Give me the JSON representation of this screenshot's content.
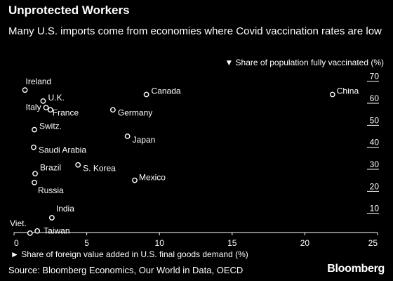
{
  "header": {
    "title": "Unprotected Workers",
    "subtitle": "Many U.S. imports come from economies where Covid vaccination rates are low"
  },
  "footer": {
    "source": "Source: Bloomberg Economics, Our World in Data, OECD",
    "brand": "Bloomberg"
  },
  "chart_data": {
    "type": "scatter",
    "title": "",
    "xlabel": "► Share of foreign value added in U.S. final goods demand (%)",
    "ylabel": "▼ Share of population fully vaccinated (%)",
    "xlim": [
      0,
      25
    ],
    "ylim": [
      0,
      75
    ],
    "xticks": [
      0,
      5,
      10,
      15,
      20,
      25
    ],
    "yticks": [
      10,
      20,
      30,
      40,
      50,
      60,
      70
    ],
    "grid": false,
    "points": [
      {
        "label": "Ireland",
        "x": 0.75,
        "y": 66
      },
      {
        "label": "Canada",
        "x": 9.1,
        "y": 64
      },
      {
        "label": "China",
        "x": 21.9,
        "y": 64
      },
      {
        "label": "U.K.",
        "x": 2.0,
        "y": 61
      },
      {
        "label": "Italy",
        "x": 2.2,
        "y": 58
      },
      {
        "label": "France",
        "x": 2.5,
        "y": 57
      },
      {
        "label": "Germany",
        "x": 6.8,
        "y": 57
      },
      {
        "label": "Switz.",
        "x": 1.4,
        "y": 48
      },
      {
        "label": "Japan",
        "x": 7.8,
        "y": 45
      },
      {
        "label": "Saudi Arabia",
        "x": 1.35,
        "y": 40
      },
      {
        "label": "S. Korea",
        "x": 4.4,
        "y": 32
      },
      {
        "label": "Brazil",
        "x": 1.45,
        "y": 28
      },
      {
        "label": "Mexico",
        "x": 8.3,
        "y": 25
      },
      {
        "label": "Russia",
        "x": 1.4,
        "y": 24
      },
      {
        "label": "India",
        "x": 2.6,
        "y": 8
      },
      {
        "label": "Viet.",
        "x": 1.1,
        "y": 1
      },
      {
        "label": "Taiwan",
        "x": 1.6,
        "y": 2
      }
    ]
  }
}
